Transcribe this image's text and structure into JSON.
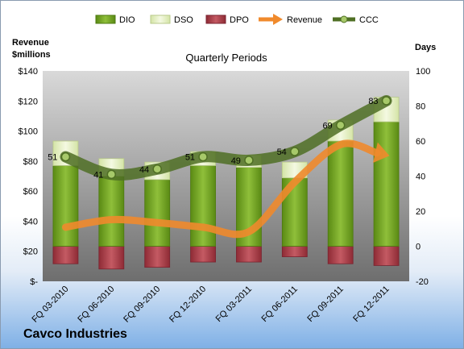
{
  "chart_data": {
    "type": "bar",
    "title": "Quarterly Periods",
    "company": "Cavco Industries",
    "left_axis_label_line1": "Revenue",
    "left_axis_label_line2": "$millions",
    "right_axis_label": "Days",
    "categories": [
      "FQ 03-2010",
      "FQ 06-2010",
      "FQ 09-2010",
      "FQ 12-2010",
      "FQ 03-2011",
      "FQ 06-2011",
      "FQ 09-2011",
      "FQ 12-2011"
    ],
    "left_ticks": [
      "$-",
      "$20",
      "$40",
      "$60",
      "$80",
      "$100",
      "$120",
      "$140"
    ],
    "left_range": [
      0,
      140
    ],
    "right_ticks": [
      "-20",
      "0",
      "20",
      "40",
      "60",
      "80",
      "100"
    ],
    "right_range": [
      -20,
      100
    ],
    "legend": [
      "DIO",
      "DSO",
      "DPO",
      "Revenue",
      "CCC"
    ],
    "series": [
      {
        "name": "DIO",
        "axis": "days",
        "values": [
          46,
          40,
          38,
          46,
          45,
          39,
          60,
          71
        ]
      },
      {
        "name": "DSO",
        "axis": "days",
        "values": [
          14,
          10,
          10,
          8,
          7,
          9,
          12,
          14
        ]
      },
      {
        "name": "DPO",
        "axis": "days",
        "values": [
          -10,
          -13,
          -12,
          -9,
          -9,
          -6,
          -10,
          -11
        ]
      },
      {
        "name": "Revenue",
        "axis": "revenue",
        "values": [
          36,
          41,
          39,
          36,
          33,
          66,
          91,
          84
        ]
      },
      {
        "name": "CCC",
        "axis": "days",
        "values": [
          51,
          41,
          44,
          51,
          49,
          54,
          69,
          83
        ]
      }
    ],
    "ccc_labels": [
      "51",
      "41",
      "44",
      "51",
      "49",
      "54",
      "69",
      "83"
    ],
    "colors": {
      "DIO": "#6b9a1f",
      "DSO": "#e9f2c9",
      "DPO": "#a43a44",
      "Revenue": "#f08a2c",
      "CCC": "#4f6f24"
    },
    "legend_position": "top",
    "grid": false
  }
}
